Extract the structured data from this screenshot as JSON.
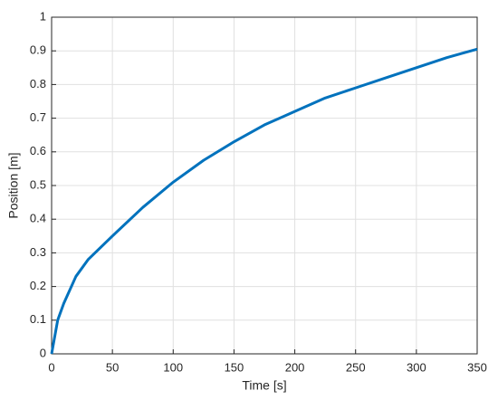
{
  "chart_data": {
    "type": "line",
    "x_label": "Time [s]",
    "y_label": "Position [m]",
    "x": [
      0,
      5,
      10,
      20,
      30,
      50,
      75,
      100,
      125,
      150,
      175,
      200,
      225,
      250,
      275,
      300,
      325,
      350
    ],
    "series": [
      {
        "name": "Position",
        "color": "#0072bd",
        "values": [
          0,
          0.1,
          0.15,
          0.23,
          0.28,
          0.35,
          0.435,
          0.51,
          0.575,
          0.63,
          0.68,
          0.72,
          0.76,
          0.79,
          0.82,
          0.85,
          0.88,
          0.905
        ]
      }
    ],
    "xlim": [
      0,
      350
    ],
    "xticks": [
      0,
      50,
      100,
      150,
      200,
      250,
      300,
      350
    ],
    "ylim": [
      0,
      1
    ],
    "yticks": [
      0,
      0.1,
      0.2,
      0.3,
      0.4,
      0.5,
      0.6,
      0.7,
      0.8,
      0.9,
      1
    ],
    "grid": true
  }
}
